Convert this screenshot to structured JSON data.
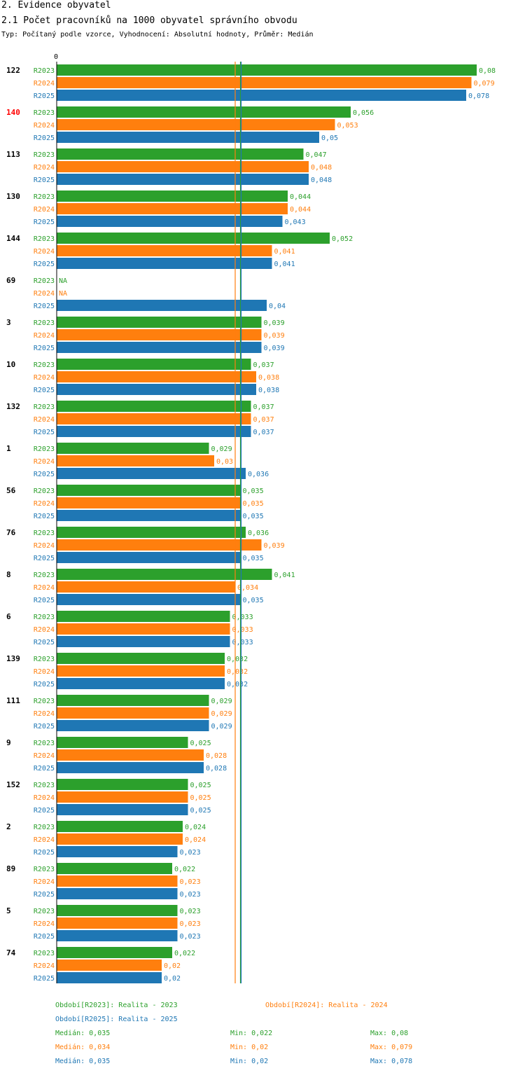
{
  "header": {
    "section": "2. Evidence obyvatel",
    "title": "2.1 Počet pracovníků na 1000 obyvatel správního obvodu",
    "subtitle": "Typ: Počítaný podle vzorce, Vyhodnocení: Absolutní hodnoty, Průměr: Medián"
  },
  "colors": {
    "R2023": "#2ca02c",
    "R2024": "#ff7f0e",
    "R2025": "#1f77b4",
    "highlight": "#ff0000",
    "axis": "#000000"
  },
  "chart_data": {
    "type": "bar",
    "orientation": "horizontal",
    "xmin": 0,
    "xmax": 0.08,
    "axis_tick_label": "0",
    "series_names": [
      "R2023",
      "R2024",
      "R2025"
    ],
    "categories": [
      {
        "id": "122",
        "highlight": false,
        "values": [
          0.08,
          0.079,
          0.078
        ],
        "labels": [
          "0,08",
          "0,079",
          "0,078"
        ]
      },
      {
        "id": "140",
        "highlight": true,
        "values": [
          0.056,
          0.053,
          0.05
        ],
        "labels": [
          "0,056",
          "0,053",
          "0,05"
        ]
      },
      {
        "id": "113",
        "highlight": false,
        "values": [
          0.047,
          0.048,
          0.048
        ],
        "labels": [
          "0,047",
          "0,048",
          "0,048"
        ]
      },
      {
        "id": "130",
        "highlight": false,
        "values": [
          0.044,
          0.044,
          0.043
        ],
        "labels": [
          "0,044",
          "0,044",
          "0,043"
        ]
      },
      {
        "id": "144",
        "highlight": false,
        "values": [
          0.052,
          0.041,
          0.041
        ],
        "labels": [
          "0,052",
          "0,041",
          "0,041"
        ]
      },
      {
        "id": "69",
        "highlight": false,
        "values": [
          null,
          null,
          0.04
        ],
        "labels": [
          "NA",
          "NA",
          "0,04"
        ]
      },
      {
        "id": "3",
        "highlight": false,
        "values": [
          0.039,
          0.039,
          0.039
        ],
        "labels": [
          "0,039",
          "0,039",
          "0,039"
        ]
      },
      {
        "id": "10",
        "highlight": false,
        "values": [
          0.037,
          0.038,
          0.038
        ],
        "labels": [
          "0,037",
          "0,038",
          "0,038"
        ]
      },
      {
        "id": "132",
        "highlight": false,
        "values": [
          0.037,
          0.037,
          0.037
        ],
        "labels": [
          "0,037",
          "0,037",
          "0,037"
        ]
      },
      {
        "id": "1",
        "highlight": false,
        "values": [
          0.029,
          0.03,
          0.036
        ],
        "labels": [
          "0,029",
          "0,03",
          "0,036"
        ]
      },
      {
        "id": "56",
        "highlight": false,
        "values": [
          0.035,
          0.035,
          0.035
        ],
        "labels": [
          "0,035",
          "0,035",
          "0,035"
        ]
      },
      {
        "id": "76",
        "highlight": false,
        "values": [
          0.036,
          0.039,
          0.035
        ],
        "labels": [
          "0,036",
          "0,039",
          "0,035"
        ]
      },
      {
        "id": "8",
        "highlight": false,
        "values": [
          0.041,
          0.034,
          0.035
        ],
        "labels": [
          "0,041",
          "0,034",
          "0,035"
        ]
      },
      {
        "id": "6",
        "highlight": false,
        "values": [
          0.033,
          0.033,
          0.033
        ],
        "labels": [
          "0,033",
          "0,033",
          "0,033"
        ]
      },
      {
        "id": "139",
        "highlight": false,
        "values": [
          0.032,
          0.032,
          0.032
        ],
        "labels": [
          "0,032",
          "0,032",
          "0,032"
        ]
      },
      {
        "id": "111",
        "highlight": false,
        "values": [
          0.029,
          0.029,
          0.029
        ],
        "labels": [
          "0,029",
          "0,029",
          "0,029"
        ]
      },
      {
        "id": "9",
        "highlight": false,
        "values": [
          0.025,
          0.028,
          0.028
        ],
        "labels": [
          "0,025",
          "0,028",
          "0,028"
        ]
      },
      {
        "id": "152",
        "highlight": false,
        "values": [
          0.025,
          0.025,
          0.025
        ],
        "labels": [
          "0,025",
          "0,025",
          "0,025"
        ]
      },
      {
        "id": "2",
        "highlight": false,
        "values": [
          0.024,
          0.024,
          0.023
        ],
        "labels": [
          "0,024",
          "0,024",
          "0,023"
        ]
      },
      {
        "id": "89",
        "highlight": false,
        "values": [
          0.022,
          0.023,
          0.023
        ],
        "labels": [
          "0,022",
          "0,023",
          "0,023"
        ]
      },
      {
        "id": "5",
        "highlight": false,
        "values": [
          0.023,
          0.023,
          0.023
        ],
        "labels": [
          "0,023",
          "0,023",
          "0,023"
        ]
      },
      {
        "id": "74",
        "highlight": false,
        "values": [
          0.022,
          0.02,
          0.02
        ],
        "labels": [
          "0,022",
          "0,02",
          "0,02"
        ]
      }
    ],
    "median_lines": [
      {
        "series": "R2023",
        "value": 0.035
      },
      {
        "series": "R2024",
        "value": 0.034
      },
      {
        "series": "R2025",
        "value": 0.035
      }
    ]
  },
  "legend": {
    "periods": [
      {
        "series": "R2023",
        "text": "Období[R2023]: Realita - 2023"
      },
      {
        "series": "R2024",
        "text": "Období[R2024]: Realita - 2024"
      },
      {
        "series": "R2025",
        "text": "Období[R2025]: Realita - 2025"
      }
    ],
    "stats": [
      {
        "series": "R2023",
        "median": "Medián: 0,035",
        "min": "Min: 0,022",
        "max": "Max: 0,08"
      },
      {
        "series": "R2024",
        "median": "Medián: 0,034",
        "min": "Min: 0,02",
        "max": "Max: 0,079"
      },
      {
        "series": "R2025",
        "median": "Medián: 0,035",
        "min": "Min: 0,02",
        "max": "Max: 0,078"
      }
    ]
  }
}
